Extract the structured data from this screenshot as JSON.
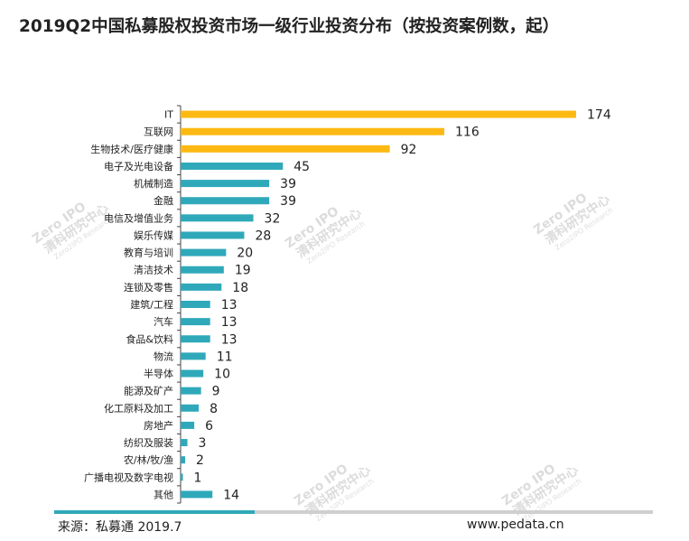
{
  "chart_data": {
    "type": "bar",
    "orientation": "horizontal",
    "title": "2019Q2中国私募股权投资市场一级行业投资分布（按投资案例数，起）",
    "categories": [
      "IT",
      "互联网",
      "生物技术/医疗健康",
      "电子及光电设备",
      "机械制造",
      "金融",
      "电信及增值业务",
      "娱乐传媒",
      "教育与培训",
      "清洁技术",
      "连锁及零售",
      "建筑/工程",
      "汽车",
      "食品&饮料",
      "物流",
      "半导体",
      "能源及矿产",
      "化工原料及加工",
      "房地产",
      "纺织及服装",
      "农/林/牧/渔",
      "广播电视及数字电视",
      "其他"
    ],
    "values": [
      174,
      116,
      92,
      45,
      39,
      39,
      32,
      28,
      20,
      19,
      18,
      13,
      13,
      13,
      11,
      10,
      9,
      8,
      6,
      3,
      2,
      1,
      14
    ],
    "highlight_count": 3,
    "colors": {
      "highlight": "#FDB913",
      "normal": "#2FA9BA"
    },
    "xlim": [
      0,
      174
    ],
    "xlabel": "",
    "ylabel": "",
    "grid": false,
    "legend": "none"
  },
  "watermark": {
    "logo_text": "Zero IPO",
    "cn": "清科研究中心",
    "en": "Zero2IPO Research"
  },
  "footer": {
    "source": "来源：私募通 2019.7",
    "url": "www.pedata.cn"
  },
  "colors": {
    "footer_bar_accent": "#2FA9BA",
    "footer_bar_base": "#cfcfcf"
  }
}
